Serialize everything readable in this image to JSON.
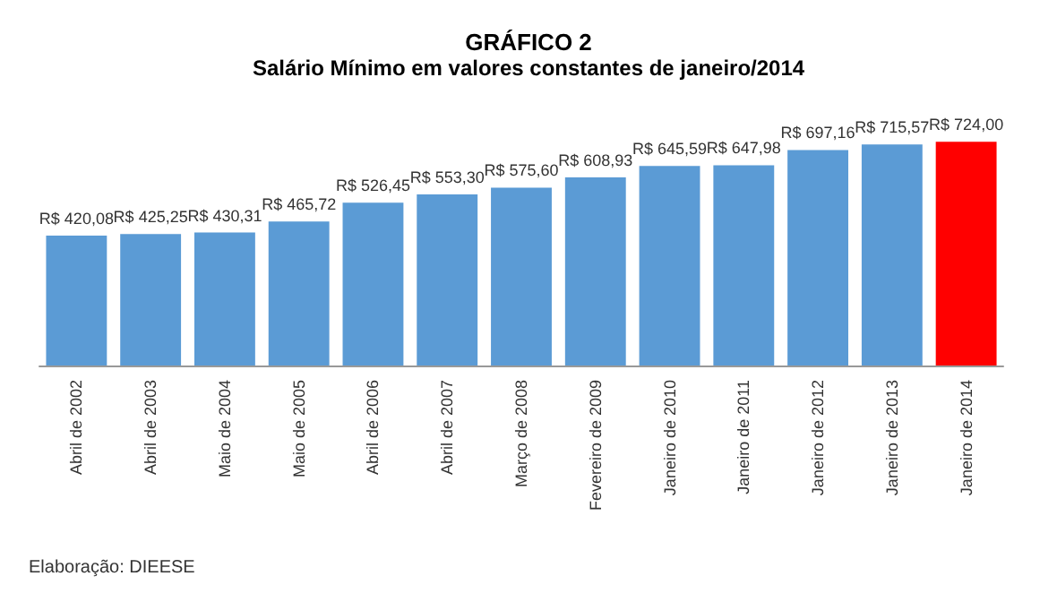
{
  "chart_data": {
    "type": "bar",
    "title": "GRÁFICO 2",
    "subtitle": "Salário Mínimo em valores constantes de janeiro/2014",
    "categories": [
      "Abril de 2002",
      "Abril de 2003",
      "Maio de 2004",
      "Maio de 2005",
      "Abril de 2006",
      "Abril de 2007",
      "Março de 2008",
      "Fevereiro de 2009",
      "Janeiro de 2010",
      "Janeiro de 2011",
      "Janeiro de 2012",
      "Janeiro de 2013",
      "Janeiro de 2014"
    ],
    "values": [
      420.08,
      425.25,
      430.31,
      465.72,
      526.45,
      553.3,
      575.6,
      608.93,
      645.59,
      647.98,
      697.16,
      715.57,
      724.0
    ],
    "value_labels": [
      "R$ 420,08",
      "R$ 425,25",
      "R$ 430,31",
      "R$ 465,72",
      "R$ 526,45",
      "R$ 553,30",
      "R$ 575,60",
      "R$ 608,93",
      "R$ 645,59",
      "R$ 647,98",
      "R$ 697,16",
      "R$ 715,57",
      "R$ 724,00"
    ],
    "colors": [
      "#5b9bd5",
      "#5b9bd5",
      "#5b9bd5",
      "#5b9bd5",
      "#5b9bd5",
      "#5b9bd5",
      "#5b9bd5",
      "#5b9bd5",
      "#5b9bd5",
      "#5b9bd5",
      "#5b9bd5",
      "#5b9bd5",
      "#ff0000"
    ],
    "annotations": [
      "Elaboração: DIEESE"
    ]
  }
}
